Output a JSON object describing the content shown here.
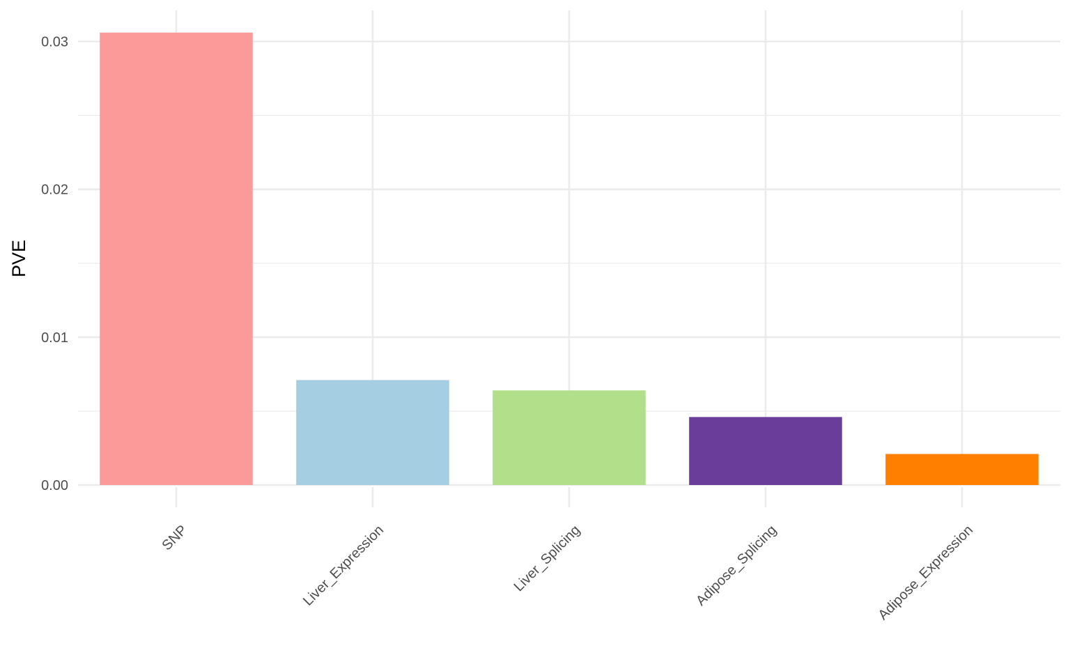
{
  "chart_data": {
    "type": "bar",
    "title": "",
    "xlabel": "",
    "ylabel": "PVE",
    "categories": [
      "SNP",
      "Liver_Expression",
      "Liver_Splicing",
      "Adipose_Splicing",
      "Adipose_Expression"
    ],
    "values": [
      0.0306,
      0.0071,
      0.0064,
      0.0046,
      0.0021
    ],
    "colors": [
      "#FB9A99",
      "#A6CEE3",
      "#B2DF8A",
      "#6A3D9A",
      "#FF7F00"
    ],
    "ylim": [
      0,
      0.0322
    ],
    "yticks": [
      0,
      0.01,
      0.02,
      0.03
    ],
    "ytick_labels": [
      "0.00",
      "0.01",
      "0.02",
      "0.03"
    ],
    "grid": true,
    "legend": "none"
  }
}
